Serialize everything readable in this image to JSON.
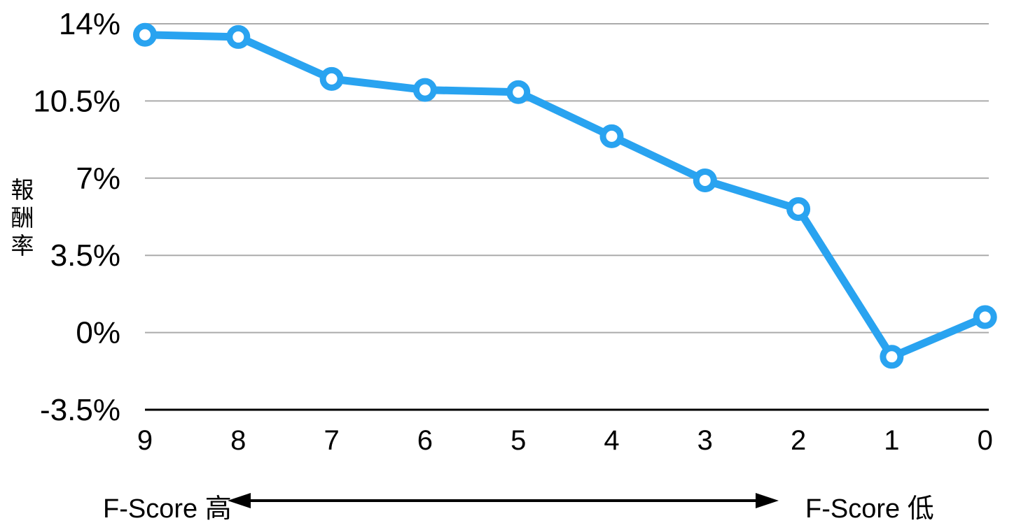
{
  "chart_data": {
    "type": "line",
    "title": "",
    "categories": [
      "9",
      "8",
      "7",
      "6",
      "5",
      "4",
      "3",
      "2",
      "1",
      "0"
    ],
    "values": [
      13.5,
      13.4,
      11.5,
      11.0,
      10.9,
      8.9,
      6.9,
      5.6,
      -1.1,
      0.7
    ],
    "series_name": "報酬率",
    "xlabel": "",
    "ylabel": "報酬率",
    "ylim": [
      -3.5,
      14
    ],
    "yticks": [
      {
        "value": 14,
        "label": "14%"
      },
      {
        "value": 10.5,
        "label": "10.5%"
      },
      {
        "value": 7,
        "label": "7%"
      },
      {
        "value": 3.5,
        "label": "3.5%"
      },
      {
        "value": 0,
        "label": "0%"
      },
      {
        "value": -3.5,
        "label": "-3.5%"
      }
    ],
    "grid": true,
    "legend_position": "none",
    "marker_style": "open-circle"
  },
  "footer": {
    "left_label": "F-Score 高",
    "right_label": "F-Score 低",
    "arrow": "double-headed-horizontal-arrow"
  },
  "colors": {
    "line": "#29A3F0",
    "marker_fill": "#FFFFFF",
    "grid": "#ABABAB",
    "axis": "#000000",
    "text": "#000000",
    "background": "#FFFFFF"
  }
}
